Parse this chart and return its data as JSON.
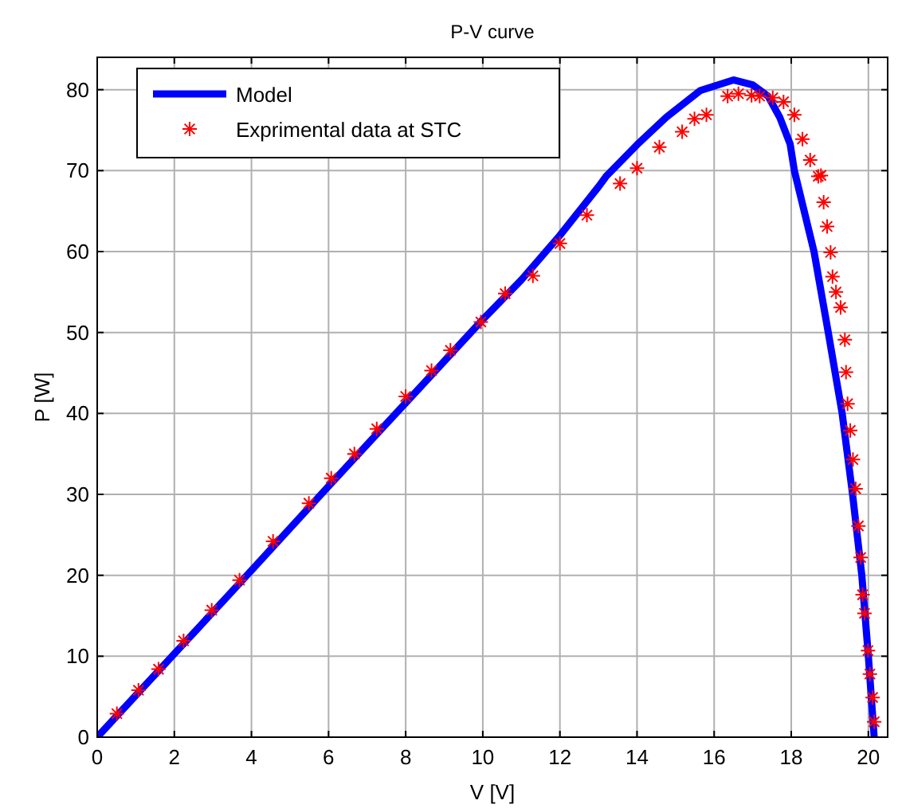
{
  "chart_data": {
    "type": "line",
    "title": "P-V curve",
    "xlabel": "V [V]",
    "ylabel": "P [W]",
    "xlim": [
      0,
      20.5
    ],
    "xticks": [
      0,
      2,
      4,
      6,
      8,
      10,
      12,
      14,
      16,
      18,
      20
    ],
    "ylim": [
      0,
      84
    ],
    "yticks": [
      0,
      10,
      20,
      30,
      40,
      50,
      60,
      70,
      80
    ],
    "grid": true,
    "legend": "top left",
    "series": [
      {
        "name": "Model",
        "color": "#0000ff",
        "line_style": "solid",
        "marker": "none",
        "x": [
          0,
          2,
          4,
          6,
          8,
          10,
          11,
          12,
          13,
          13.2,
          14,
          14.76,
          15.64,
          16.5,
          17,
          17.4,
          17.7,
          17.97,
          18.08,
          18.59,
          18.96,
          19.32,
          19.59,
          19.83,
          20,
          20.15
        ],
        "values": [
          0,
          10.3,
          20.6,
          31,
          41.3,
          51.6,
          56.5,
          62,
          68,
          69.3,
          73.2,
          76.6,
          79.9,
          81.2,
          80.6,
          79.2,
          76.6,
          73.3,
          70,
          60,
          50,
          40,
          30,
          20,
          10,
          0
        ]
      },
      {
        "name": "Exprimental data at STC",
        "type": "scatter",
        "color": "#ff0000",
        "marker": "cross",
        "x": [
          0.51,
          1.07,
          1.59,
          2.24,
          2.97,
          3.69,
          4.56,
          5.49,
          6.07,
          6.67,
          7.25,
          8.0,
          8.67,
          9.16,
          9.95,
          10.58,
          11.3,
          12.0,
          12.7,
          13.56,
          14.0,
          14.58,
          15.17,
          15.49,
          15.8,
          16.35,
          16.63,
          16.97,
          17.18,
          17.52,
          17.8,
          18.08,
          18.29,
          18.49,
          18.7,
          18.77,
          18.84,
          18.93,
          19.02,
          19.07,
          19.16,
          19.28,
          19.39,
          19.42,
          19.46,
          19.53,
          19.6,
          19.67,
          19.74,
          19.8,
          19.85,
          19.9,
          19.99,
          20.04,
          20.11,
          20.15
        ],
        "values": [
          2.9,
          5.8,
          8.4,
          11.9,
          15.7,
          19.4,
          24.2,
          28.9,
          32.0,
          35.0,
          38.1,
          42.1,
          45.3,
          47.8,
          51.3,
          54.8,
          57.0,
          61.0,
          64.5,
          68.4,
          70.3,
          72.9,
          74.8,
          76.4,
          76.9,
          79.2,
          79.5,
          79.3,
          79.2,
          79.0,
          78.5,
          76.9,
          73.9,
          71.3,
          69.3,
          69.4,
          66.1,
          63.1,
          59.9,
          56.9,
          55.0,
          53.1,
          49.1,
          45.1,
          41.2,
          37.9,
          34.3,
          30.7,
          26.1,
          22.2,
          17.6,
          15.3,
          10.7,
          7.8,
          4.9,
          1.9
        ]
      }
    ]
  }
}
